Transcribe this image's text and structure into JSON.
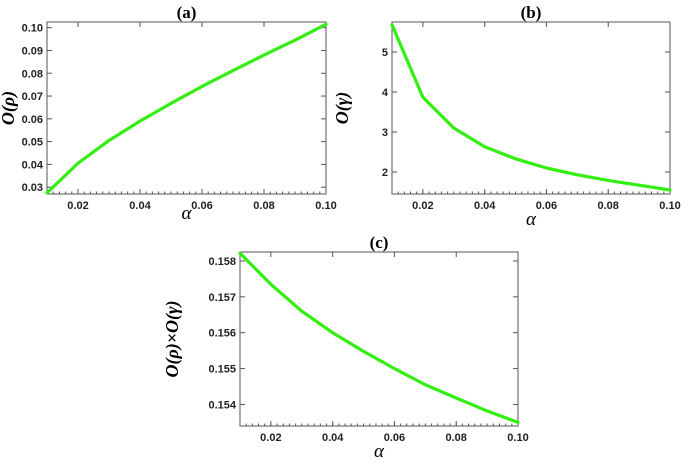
{
  "chart_data": [
    {
      "type": "line",
      "title": "(a)",
      "xlabel": "α",
      "ylabel": "O(ρ)",
      "xlim": [
        0.01,
        0.1
      ],
      "ylim": [
        0.027,
        0.1025
      ],
      "xticks": [
        0.02,
        0.04,
        0.06,
        0.08,
        0.1
      ],
      "xtick_labels": [
        "0.02",
        "0.04",
        "0.06",
        "0.08",
        "0.10"
      ],
      "yticks": [
        0.03,
        0.04,
        0.05,
        0.06,
        0.07,
        0.08,
        0.09,
        0.1
      ],
      "ytick_labels": [
        "0.03",
        "0.04",
        "0.05",
        "0.06",
        "0.07",
        "0.08",
        "0.09",
        "0.10"
      ],
      "grid": false,
      "series": [
        {
          "color": "#33ee11",
          "x": [
            0.01,
            0.02,
            0.03,
            0.04,
            0.05,
            0.06,
            0.07,
            0.08,
            0.09,
            0.1
          ],
          "y": [
            0.0275,
            0.0405,
            0.0505,
            0.059,
            0.0668,
            0.0742,
            0.0812,
            0.088,
            0.0945,
            0.1015
          ]
        }
      ]
    },
    {
      "type": "line",
      "title": "(b)",
      "xlabel": "α",
      "ylabel": "O(γ)",
      "xlim": [
        0.01,
        0.1
      ],
      "ylim": [
        1.45,
        5.75
      ],
      "xticks": [
        0.02,
        0.04,
        0.06,
        0.08,
        0.1
      ],
      "xtick_labels": [
        "0.02",
        "0.04",
        "0.06",
        "0.08",
        "0.10"
      ],
      "yticks": [
        2,
        3,
        4,
        5
      ],
      "ytick_labels": [
        "2",
        "3",
        "4",
        "5"
      ],
      "grid": false,
      "series": [
        {
          "color": "#33ee11",
          "x": [
            0.01,
            0.02,
            0.03,
            0.04,
            0.05,
            0.06,
            0.07,
            0.08,
            0.09,
            0.1
          ],
          "y": [
            5.68,
            3.87,
            3.1,
            2.63,
            2.33,
            2.1,
            1.93,
            1.79,
            1.67,
            1.55
          ]
        }
      ]
    },
    {
      "type": "line",
      "title": "(c)",
      "xlabel": "α",
      "ylabel": "O(ρ)×O(γ)",
      "xlim": [
        0.01,
        0.1
      ],
      "ylim": [
        0.1534,
        0.15825
      ],
      "xticks": [
        0.02,
        0.04,
        0.06,
        0.08,
        0.1
      ],
      "xtick_labels": [
        "0.02",
        "0.04",
        "0.06",
        "0.08",
        "0.10"
      ],
      "yticks": [
        0.154,
        0.155,
        0.156,
        0.157,
        0.158
      ],
      "ytick_labels": [
        "0.154",
        "0.155",
        "0.156",
        "0.157",
        "0.158"
      ],
      "grid": false,
      "series": [
        {
          "color": "#33ee11",
          "x": [
            0.01,
            0.02,
            0.03,
            0.04,
            0.05,
            0.06,
            0.07,
            0.08,
            0.09,
            0.1
          ],
          "y": [
            0.15822,
            0.15735,
            0.1566,
            0.156,
            0.15548,
            0.155,
            0.15455,
            0.15418,
            0.15382,
            0.1535
          ]
        }
      ]
    }
  ]
}
